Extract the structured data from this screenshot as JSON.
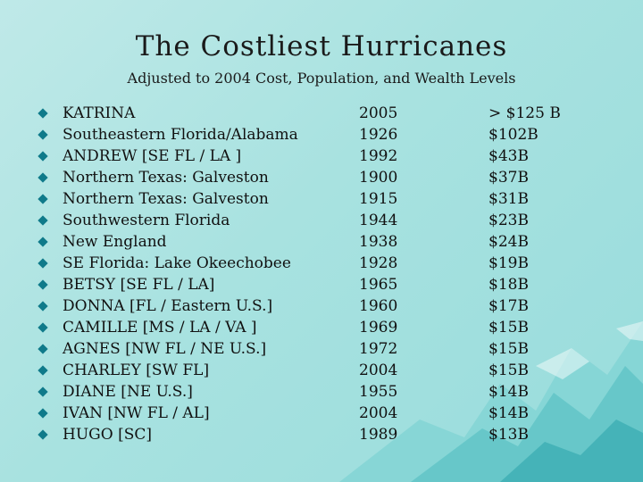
{
  "slide": {
    "title": "The Costliest Hurricanes",
    "subtitle": "Adjusted to 2004 Cost, Population, and Wealth Levels",
    "accent_color": "#0f7a8a",
    "background_color": "#a8e2e0",
    "rows": [
      {
        "name": "KATRINA",
        "year": "2005",
        "cost": "> $125 B"
      },
      {
        "name": "Southeastern Florida/Alabama",
        "year": "1926",
        "cost": "$102B"
      },
      {
        "name": "ANDREW [SE FL / LA ]",
        "year": "1992",
        "cost": "$43B"
      },
      {
        "name": "Northern Texas: Galveston",
        "year": "1900",
        "cost": "$37B"
      },
      {
        "name": "Northern Texas: Galveston",
        "year": "1915",
        "cost": "$31B"
      },
      {
        "name": "Southwestern Florida",
        "year": "1944",
        "cost": "$23B"
      },
      {
        "name": "New England",
        "year": "1938",
        "cost": "$24B"
      },
      {
        "name": "SE Florida: Lake Okeechobee",
        "year": "1928",
        "cost": "$19B"
      },
      {
        "name": "BETSY [SE FL / LA]",
        "year": "1965",
        "cost": "$18B"
      },
      {
        "name": "DONNA [FL / Eastern U.S.]",
        "year": "1960",
        "cost": "$17B"
      },
      {
        "name": "CAMILLE [MS / LA / VA ]",
        "year": "1969",
        "cost": "$15B"
      },
      {
        "name": "AGNES [NW FL / NE U.S.]",
        "year": "1972",
        "cost": "$15B"
      },
      {
        "name": "CHARLEY [SW FL]",
        "year": "2004",
        "cost": "$15B"
      },
      {
        "name": "DIANE [NE U.S.]",
        "year": "1955",
        "cost": "$14B"
      },
      {
        "name": "IVAN [NW FL / AL]",
        "year": "2004",
        "cost": "$14B"
      },
      {
        "name": "HUGO [SC]",
        "year": "1989",
        "cost": "$13B"
      }
    ]
  }
}
